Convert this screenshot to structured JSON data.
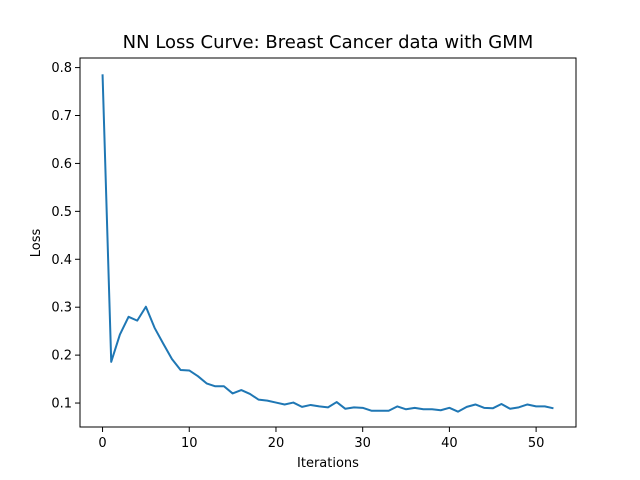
{
  "chart_data": {
    "type": "line",
    "title": "NN Loss Curve: Breast Cancer data with GMM",
    "xlabel": "Iterations",
    "ylabel": "Loss",
    "xlim": [
      -2.6,
      54.6
    ],
    "ylim": [
      0.05,
      0.82
    ],
    "xticks": [
      0,
      10,
      20,
      30,
      40,
      50
    ],
    "yticks": [
      0.1,
      0.2,
      0.3,
      0.4,
      0.5,
      0.6,
      0.7,
      0.8
    ],
    "grid": false,
    "line_color": "#1f77b4",
    "series": [
      {
        "x": [
          0,
          1,
          2,
          3,
          4,
          5,
          6,
          7,
          8,
          9,
          10,
          11,
          12,
          13,
          14,
          15,
          16,
          17,
          18,
          19,
          20,
          21,
          22,
          23,
          24,
          25,
          26,
          27,
          28,
          29,
          30,
          31,
          32,
          33,
          34,
          35,
          36,
          37,
          38,
          39,
          40,
          41,
          42,
          43,
          44,
          45,
          46,
          47,
          48,
          49,
          50,
          51,
          52
        ],
        "values": [
          0.786,
          0.186,
          0.243,
          0.28,
          0.272,
          0.301,
          0.257,
          0.224,
          0.192,
          0.169,
          0.168,
          0.156,
          0.141,
          0.135,
          0.135,
          0.12,
          0.127,
          0.119,
          0.107,
          0.105,
          0.101,
          0.097,
          0.101,
          0.092,
          0.096,
          0.093,
          0.091,
          0.102,
          0.088,
          0.091,
          0.09,
          0.084,
          0.084,
          0.084,
          0.093,
          0.087,
          0.09,
          0.087,
          0.087,
          0.085,
          0.09,
          0.082,
          0.092,
          0.097,
          0.09,
          0.089,
          0.098,
          0.088,
          0.091,
          0.097,
          0.093,
          0.093,
          0.089
        ]
      }
    ]
  }
}
